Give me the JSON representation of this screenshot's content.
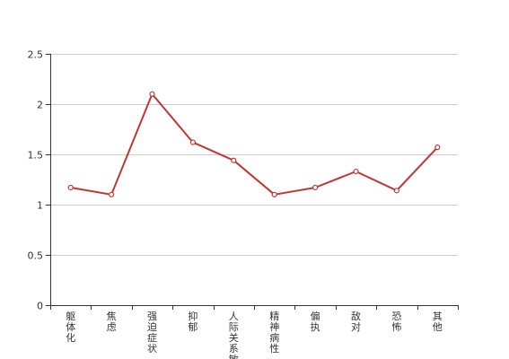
{
  "chart_data": {
    "type": "line",
    "title": "",
    "xlabel": "",
    "ylabel": "",
    "categories": [
      "躯体化",
      "焦虑",
      "强迫症状",
      "抑郁",
      "人际关系敏感",
      "精神病性",
      "偏执",
      "敌对",
      "恐怖",
      "其他"
    ],
    "series": [
      {
        "values": [
          1.17,
          1.1,
          2.1,
          1.62,
          1.44,
          1.1,
          1.17,
          1.33,
          1.14,
          1.57
        ]
      }
    ],
    "ylim": [
      0,
      2.5
    ],
    "y_ticks": [
      "0",
      "0.5",
      "1",
      "1.5",
      "2",
      "2.5"
    ],
    "grid": true,
    "legend": "none",
    "line_color": "#c23531",
    "grid_color": "#cccccc",
    "axis_color": "#333333"
  }
}
